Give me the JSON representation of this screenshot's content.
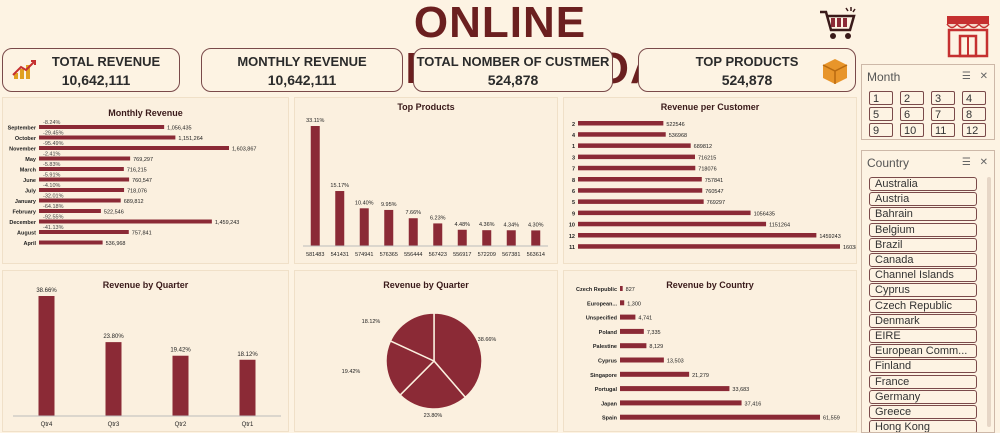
{
  "header": {
    "title": "ONLINE RETAILDASHBOARD",
    "cart_icon": "shopping-cart-icon",
    "store_icon": "storefront-icon"
  },
  "kpis": [
    {
      "label": "TOTAL REVENUE",
      "value": "10,642,111"
    },
    {
      "label": "MONTHLY REVENUE",
      "value": "10,642,111"
    },
    {
      "label": "TOTAL NOMBER OF CUSTMER",
      "value": "524,878"
    },
    {
      "label": "TOP PRODUCTS",
      "value": "524,878"
    }
  ],
  "colors": {
    "bar": "#8b2a36",
    "title": "#6b1f1f",
    "background": "#fdf3e3"
  },
  "chart_data": [
    {
      "id": "monthly",
      "type": "bar",
      "orientation": "horizontal",
      "title": "Monthly Revenue",
      "categories": [
        "September",
        "October",
        "November",
        "May",
        "March",
        "June",
        "July",
        "January",
        "February",
        "December",
        "August",
        "April"
      ],
      "values": [
        1056435,
        1151264,
        1603867,
        769297,
        716215,
        760547,
        718076,
        689812,
        522546,
        1459243,
        757841,
        536968
      ],
      "value_labels": [
        "1,056,435",
        "1,151,264",
        "1,603,867",
        "769,297",
        "716,215",
        "760,547",
        "718,076",
        "689,812",
        "522,546",
        "1,459,243",
        "757,841",
        "536,968"
      ],
      "pct_labels": [
        "-8.24%",
        "-29.45%",
        "-95.49%",
        "-2.41%",
        "-5.83%",
        "-5.91%",
        "-4.10%",
        "-32.01%",
        "-64.18%",
        "-92.55%",
        "-41.13%",
        ""
      ]
    },
    {
      "id": "top_products",
      "type": "bar",
      "title": "Top Products",
      "categories": [
        "581483",
        "541431",
        "574941",
        "576365",
        "556444",
        "567423",
        "556917",
        "572209",
        "567381",
        "563614"
      ],
      "values": [
        33.11,
        15.17,
        10.4,
        9.95,
        7.66,
        6.23,
        4.48,
        4.36,
        4.34,
        4.3
      ],
      "value_labels": [
        "33.11%",
        "15.17%",
        "10.40%",
        "9.95%",
        "7.66%",
        "6.23%",
        "4.48%",
        "4.36%",
        "4.34%",
        "4.30%"
      ]
    },
    {
      "id": "rev_customer",
      "type": "bar",
      "orientation": "horizontal",
      "title": "Revenue per Customer",
      "categories": [
        "2",
        "4",
        "1",
        "3",
        "7",
        "8",
        "6",
        "5",
        "9",
        "10",
        "12",
        "11"
      ],
      "values": [
        522546,
        536968,
        689812,
        716215,
        718076,
        757841,
        760547,
        769297,
        1056435,
        1151264,
        1459243,
        1603867
      ],
      "value_labels": [
        "522546",
        "536968",
        "689812",
        "716215",
        "718076",
        "757841",
        "760547",
        "769297",
        "1056435",
        "1151264",
        "1459243",
        "1603867"
      ]
    },
    {
      "id": "quarter_bar",
      "type": "bar",
      "title": "Revenue by Quarter",
      "categories": [
        "Qtr4",
        "Qtr3",
        "Qtr2",
        "Qtr1"
      ],
      "values": [
        38.66,
        23.8,
        19.42,
        18.12
      ],
      "value_labels": [
        "38.66%",
        "23.80%",
        "19.42%",
        "18.12%"
      ]
    },
    {
      "id": "quarter_pie",
      "type": "pie",
      "title": "Revenue by Quarter",
      "values": [
        38.66,
        23.8,
        19.42,
        18.12
      ],
      "value_labels": [
        "38.66%",
        "23.80%",
        "19.42%",
        "18.12%"
      ]
    },
    {
      "id": "country",
      "type": "bar",
      "orientation": "horizontal",
      "title": "Revenue by Country",
      "categories": [
        "Czech Republic",
        "European...",
        "Unspecified",
        "Poland",
        "Palestine",
        "Cyprus",
        "Singapore",
        "Portugal",
        "Japan",
        "Spain"
      ],
      "values": [
        827,
        1300,
        4741,
        7335,
        8129,
        13503,
        21279,
        33683,
        37416,
        61559
      ],
      "value_labels": [
        "827",
        "1,300",
        "4,741",
        "7,335",
        "8,129",
        "13,503",
        "21,279",
        "33,683",
        "37,416",
        "61,559"
      ]
    }
  ],
  "month_slicer": {
    "title": "Month",
    "items": [
      "1",
      "2",
      "3",
      "4",
      "5",
      "6",
      "7",
      "8",
      "9",
      "10",
      "11",
      "12"
    ]
  },
  "country_slicer": {
    "title": "Country",
    "items": [
      "Australia",
      "Austria",
      "Bahrain",
      "Belgium",
      "Brazil",
      "Canada",
      "Channel Islands",
      "Cyprus",
      "Czech Republic",
      "Denmark",
      "EIRE",
      "European Comm...",
      "Finland",
      "France",
      "Germany",
      "Greece",
      "Hong Kong"
    ]
  },
  "slicer_icons": {
    "multiselect": "multi-select-icon",
    "clear": "clear-filter-icon"
  }
}
